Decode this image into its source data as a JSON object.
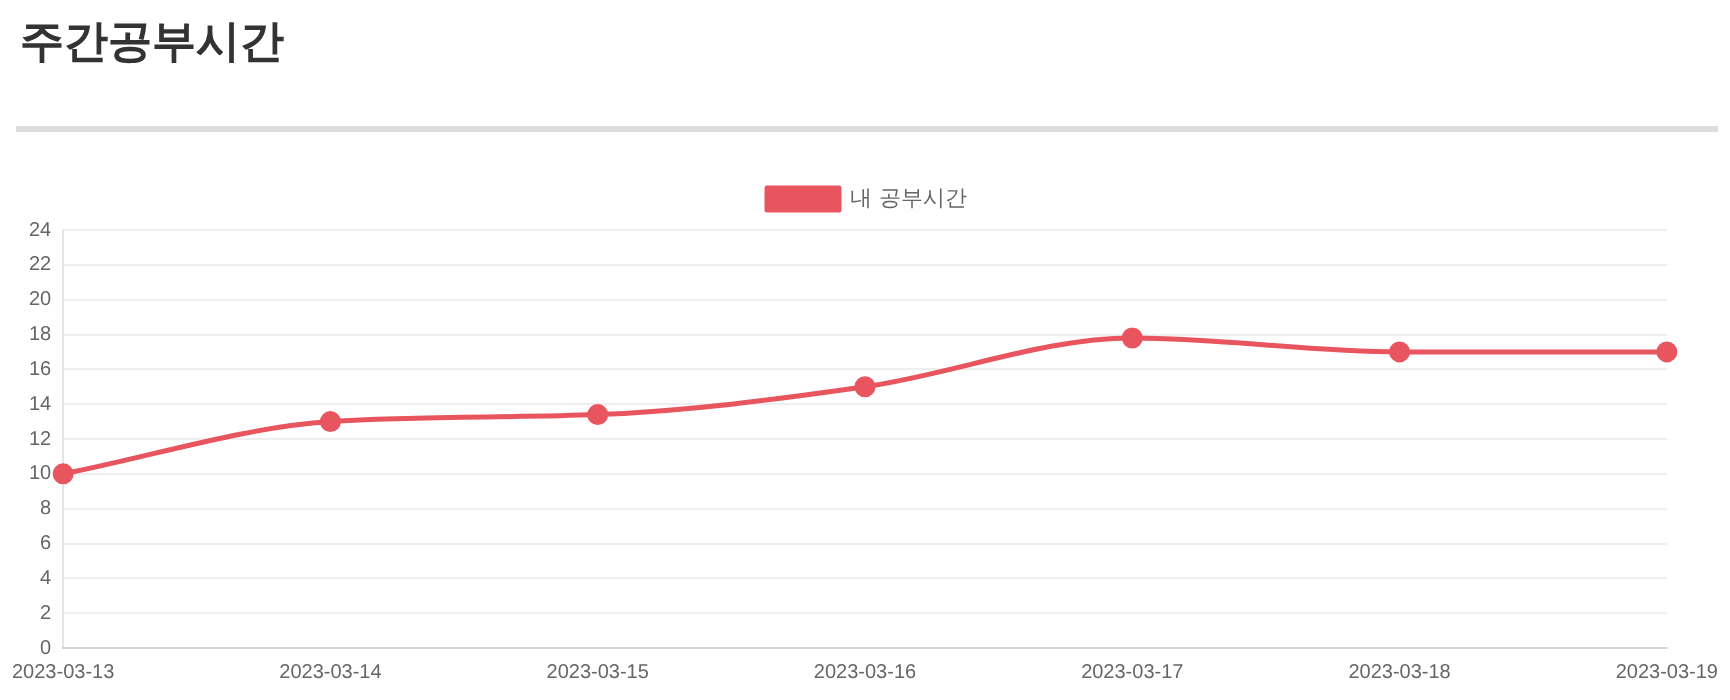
{
  "chart_data": {
    "type": "line",
    "title": "주간공부시간",
    "categories": [
      "2023-03-13",
      "2023-03-14",
      "2023-03-15",
      "2023-03-16",
      "2023-03-17",
      "2023-03-18",
      "2023-03-19"
    ],
    "series": [
      {
        "name": "내 공부시간",
        "color": "#e8555f",
        "values": [
          10,
          13,
          13.4,
          15,
          17.8,
          17,
          17
        ]
      }
    ],
    "ylim": [
      0,
      24
    ],
    "yticks": [
      0,
      2,
      4,
      6,
      8,
      10,
      12,
      14,
      16,
      18,
      20,
      22,
      24
    ],
    "grid": "y",
    "legend": "top",
    "marker": "circle",
    "line_style": "solid"
  }
}
